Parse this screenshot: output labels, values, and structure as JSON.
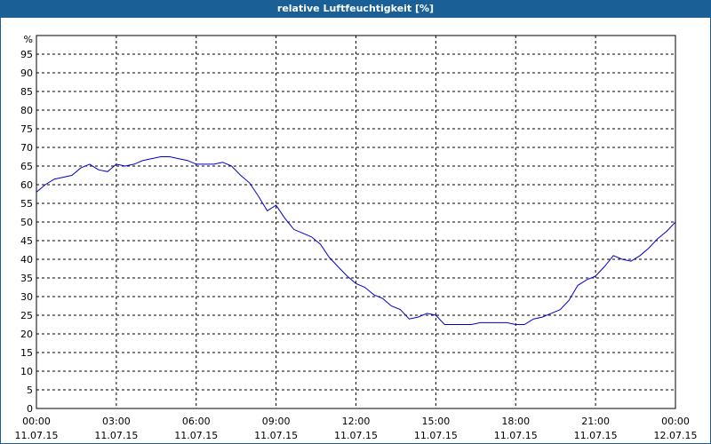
{
  "chart_data": {
    "type": "line",
    "title": "relative Luftfeuchtigkeit [%]",
    "ylabel": "%",
    "xlabel": "",
    "ylim": [
      0,
      100
    ],
    "xlim_hours": [
      0,
      24
    ],
    "grid": true,
    "y_ticks": [
      0,
      5,
      10,
      15,
      20,
      25,
      30,
      35,
      40,
      45,
      50,
      55,
      60,
      65,
      70,
      75,
      80,
      85,
      90,
      95
    ],
    "x_ticks": [
      {
        "time": "00:00",
        "date": "11.07.15"
      },
      {
        "time": "03:00",
        "date": "11.07.15"
      },
      {
        "time": "06:00",
        "date": "11.07.15"
      },
      {
        "time": "09:00",
        "date": "11.07.15"
      },
      {
        "time": "12:00",
        "date": "11.07.15"
      },
      {
        "time": "15:00",
        "date": "11.07.15"
      },
      {
        "time": "18:00",
        "date": "11.07.15"
      },
      {
        "time": "21:00",
        "date": "11.07.15"
      },
      {
        "time": "00:00",
        "date": "12.07.15"
      }
    ],
    "series": [
      {
        "color": "#0000cc",
        "x": [
          0,
          0.33,
          0.67,
          1.0,
          1.33,
          1.67,
          2.0,
          2.33,
          2.67,
          3.0,
          3.33,
          3.67,
          4.0,
          4.33,
          4.67,
          5.0,
          5.33,
          5.67,
          6.0,
          6.33,
          6.67,
          7.0,
          7.33,
          7.67,
          8.0,
          8.33,
          8.67,
          9.0,
          9.33,
          9.67,
          10.0,
          10.33,
          10.67,
          11.0,
          11.33,
          11.67,
          12.0,
          12.33,
          12.67,
          13.0,
          13.33,
          13.67,
          14.0,
          14.33,
          14.67,
          15.0,
          15.33,
          15.67,
          16.0,
          16.33,
          16.67,
          17.0,
          17.33,
          17.67,
          18.0,
          18.33,
          18.67,
          19.0,
          19.33,
          19.67,
          20.0,
          20.33,
          20.67,
          21.0,
          21.33,
          21.67,
          22.0,
          22.33,
          22.67,
          23.0,
          23.33,
          23.67,
          24.0
        ],
        "values": [
          58,
          60,
          61.5,
          62,
          62.5,
          64.5,
          65.5,
          64,
          63.5,
          65.5,
          65,
          65.5,
          66.5,
          67,
          67.5,
          67.5,
          67,
          66.5,
          65.5,
          65.5,
          65.5,
          66,
          65,
          62.5,
          60.5,
          57,
          53,
          54.5,
          51,
          48,
          47,
          46,
          44,
          40.5,
          38,
          35.5,
          33.5,
          32.5,
          30.5,
          29.5,
          27.5,
          26.5,
          24,
          24.5,
          25.5,
          25,
          22.5,
          22.5,
          22.5,
          22.5,
          23,
          23,
          23,
          23,
          22.5,
          22.5,
          24,
          24.5,
          25.5,
          26.5,
          29,
          33,
          34.5,
          35.5,
          38,
          41,
          40,
          39.5,
          41,
          43,
          45.5,
          47.5,
          50
        ]
      }
    ]
  }
}
